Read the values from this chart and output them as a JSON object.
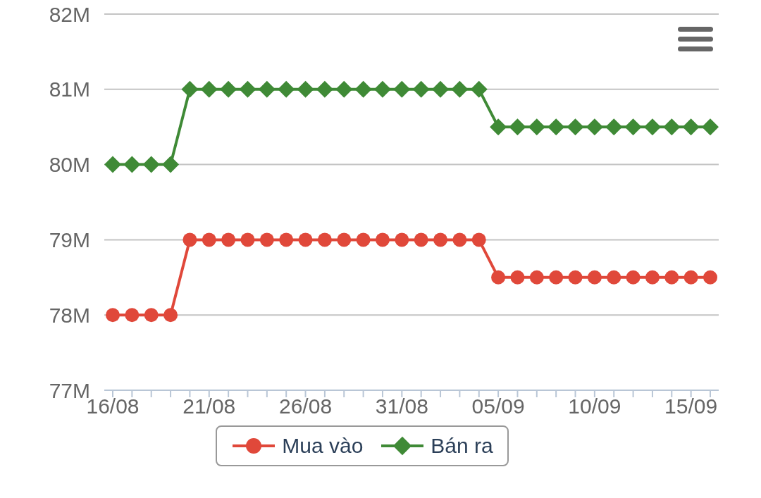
{
  "chart_data": {
    "type": "line",
    "categories": [
      "16/08",
      null,
      null,
      null,
      null,
      "21/08",
      null,
      null,
      null,
      null,
      "26/08",
      null,
      null,
      null,
      null,
      "31/08",
      null,
      null,
      null,
      null,
      "05/09",
      null,
      null,
      null,
      null,
      "10/09",
      null,
      null,
      null,
      null,
      "15/09",
      null
    ],
    "series": [
      {
        "name": "Mua vào",
        "color": "#e0483a",
        "marker": "circle",
        "values": [
          78000000,
          78000000,
          78000000,
          78000000,
          79000000,
          79000000,
          79000000,
          79000000,
          79000000,
          79000000,
          79000000,
          79000000,
          79000000,
          79000000,
          79000000,
          79000000,
          79000000,
          79000000,
          79000000,
          79000000,
          78500000,
          78500000,
          78500000,
          78500000,
          78500000,
          78500000,
          78500000,
          78500000,
          78500000,
          78500000,
          78500000,
          78500000
        ]
      },
      {
        "name": "Bán ra",
        "color": "#3f8a36",
        "marker": "diamond",
        "values": [
          80000000,
          80000000,
          80000000,
          80000000,
          81000000,
          81000000,
          81000000,
          81000000,
          81000000,
          81000000,
          81000000,
          81000000,
          81000000,
          81000000,
          81000000,
          81000000,
          81000000,
          81000000,
          81000000,
          81000000,
          80500000,
          80500000,
          80500000,
          80500000,
          80500000,
          80500000,
          80500000,
          80500000,
          80500000,
          80500000,
          80500000,
          80500000
        ]
      }
    ],
    "ylim": [
      77000000,
      82000000
    ],
    "yticks": [
      {
        "value": 77000000,
        "label": "77M"
      },
      {
        "value": 78000000,
        "label": "78M"
      },
      {
        "value": 79000000,
        "label": "79M"
      },
      {
        "value": 80000000,
        "label": "80M"
      },
      {
        "value": 81000000,
        "label": "81M"
      },
      {
        "value": 82000000,
        "label": "82M"
      }
    ],
    "grid": "y",
    "legend": "bottom",
    "line_style": "solid"
  }
}
